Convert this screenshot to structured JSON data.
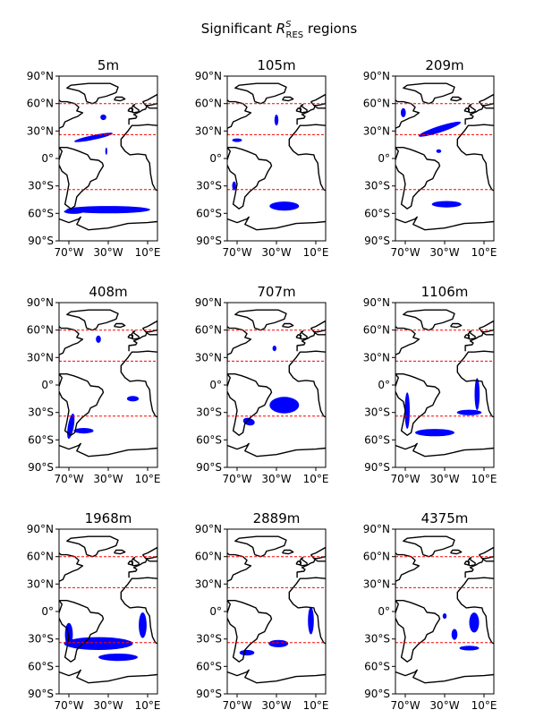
{
  "figure": {
    "title_prefix": "Significant ",
    "title_symbol": "R",
    "title_sup": "S",
    "title_sub": "RES",
    "title_suffix": " regions"
  },
  "colors": {
    "land_outline": "#000000",
    "significant_region": "#0000ff",
    "latitude_lines": "#ff0000",
    "background": "#ffffff"
  },
  "axes": {
    "lat_ticks": [
      "90°N",
      "60°N",
      "30°N",
      "0°",
      "30°S",
      "60°S",
      "90°S"
    ],
    "lat_values": [
      90,
      60,
      30,
      0,
      -30,
      -60,
      -90
    ],
    "lon_ticks": [
      "70°W",
      "30°W",
      "10°E"
    ],
    "lon_values": [
      -70,
      -30,
      10
    ],
    "lon_range": [
      -80,
      20
    ],
    "lat_range": [
      -90,
      90
    ]
  },
  "reference_latitudes": [
    60,
    26,
    -34
  ],
  "panels": [
    {
      "title": "5m",
      "regions": [
        {
          "lat": 23,
          "lon": -45,
          "w": 40,
          "h": 5,
          "rot": -12
        },
        {
          "lat": 45,
          "lon": -35,
          "w": 6,
          "h": 6,
          "rot": 0
        },
        {
          "lat": -56,
          "lon": -30,
          "w": 85,
          "h": 8,
          "rot": 0
        },
        {
          "lat": -58,
          "lon": -65,
          "w": 20,
          "h": 5,
          "rot": 0
        },
        {
          "lat": 8,
          "lon": -32,
          "w": 2,
          "h": 8,
          "rot": 0
        }
      ]
    },
    {
      "title": "105m",
      "regions": [
        {
          "lat": -52,
          "lon": -22,
          "w": 30,
          "h": 10,
          "rot": 0
        },
        {
          "lat": -30,
          "lon": -73,
          "w": 4,
          "h": 10,
          "rot": 0
        },
        {
          "lat": 20,
          "lon": -70,
          "w": 10,
          "h": 4,
          "rot": 0
        },
        {
          "lat": 42,
          "lon": -30,
          "w": 4,
          "h": 12,
          "rot": 0
        }
      ]
    },
    {
      "title": "209m",
      "regions": [
        {
          "lat": 32,
          "lon": -35,
          "w": 45,
          "h": 7,
          "rot": -18
        },
        {
          "lat": 50,
          "lon": -72,
          "w": 5,
          "h": 10,
          "rot": 0
        },
        {
          "lat": 8,
          "lon": -36,
          "w": 5,
          "h": 4,
          "rot": 0
        },
        {
          "lat": -50,
          "lon": -28,
          "w": 30,
          "h": 7,
          "rot": 0
        }
      ]
    },
    {
      "title": "408m",
      "regions": [
        {
          "lat": -45,
          "lon": -68,
          "w": 6,
          "h": 28,
          "rot": 10
        },
        {
          "lat": -15,
          "lon": -5,
          "w": 12,
          "h": 6,
          "rot": 0
        },
        {
          "lat": 50,
          "lon": -40,
          "w": 5,
          "h": 8,
          "rot": 0
        },
        {
          "lat": -50,
          "lon": -55,
          "w": 20,
          "h": 6,
          "rot": 0
        }
      ]
    },
    {
      "title": "707m",
      "regions": [
        {
          "lat": -22,
          "lon": -22,
          "w": 30,
          "h": 18,
          "rot": 0
        },
        {
          "lat": -40,
          "lon": -58,
          "w": 12,
          "h": 8,
          "rot": 15
        },
        {
          "lat": 40,
          "lon": -32,
          "w": 4,
          "h": 6,
          "rot": 0
        }
      ]
    },
    {
      "title": "1106m",
      "regions": [
        {
          "lat": -10,
          "lon": 3,
          "w": 5,
          "h": 35,
          "rot": 0
        },
        {
          "lat": -28,
          "lon": -68,
          "w": 5,
          "h": 40,
          "rot": 0
        },
        {
          "lat": -30,
          "lon": -5,
          "w": 25,
          "h": 6,
          "rot": 0
        },
        {
          "lat": -52,
          "lon": -40,
          "w": 40,
          "h": 8,
          "rot": 0
        }
      ]
    },
    {
      "title": "1968m",
      "regions": [
        {
          "lat": -35,
          "lon": -40,
          "w": 70,
          "h": 14,
          "rot": 0
        },
        {
          "lat": -15,
          "lon": 5,
          "w": 8,
          "h": 28,
          "rot": 0
        },
        {
          "lat": -25,
          "lon": -70,
          "w": 8,
          "h": 25,
          "rot": 0
        },
        {
          "lat": -50,
          "lon": -20,
          "w": 40,
          "h": 8,
          "rot": 0
        }
      ]
    },
    {
      "title": "2889m",
      "regions": [
        {
          "lat": -10,
          "lon": 5,
          "w": 6,
          "h": 30,
          "rot": 0
        },
        {
          "lat": -35,
          "lon": -28,
          "w": 20,
          "h": 8,
          "rot": 0
        },
        {
          "lat": -45,
          "lon": -60,
          "w": 15,
          "h": 6,
          "rot": 0
        }
      ]
    },
    {
      "title": "4375m",
      "regions": [
        {
          "lat": -12,
          "lon": 0,
          "w": 10,
          "h": 22,
          "rot": 0
        },
        {
          "lat": -25,
          "lon": -20,
          "w": 6,
          "h": 12,
          "rot": 0
        },
        {
          "lat": -40,
          "lon": -5,
          "w": 20,
          "h": 5,
          "rot": 0
        },
        {
          "lat": -5,
          "lon": -30,
          "w": 4,
          "h": 6,
          "rot": 0
        }
      ]
    }
  ]
}
